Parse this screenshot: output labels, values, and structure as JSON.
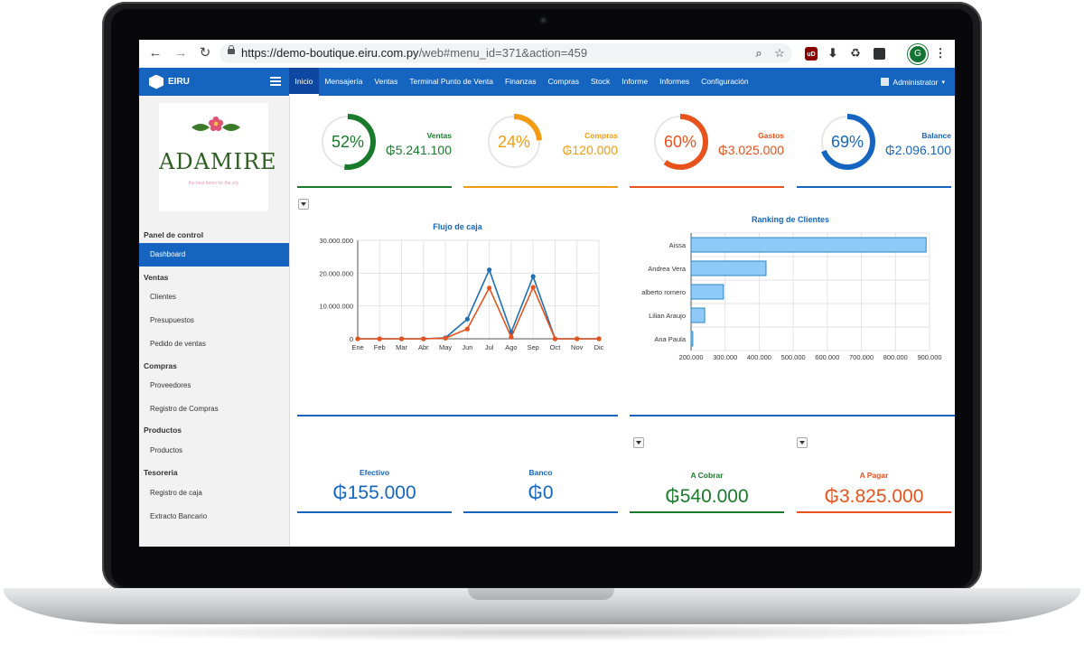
{
  "browser": {
    "url_host": "https://demo-boutique.eiru.com.py",
    "url_path": "/web#menu_id=371&action=459",
    "profile_initial": "G",
    "ublock_label": "uD"
  },
  "app": {
    "brand": "EIRU",
    "menu": [
      "Inicio",
      "Mensajería",
      "Ventas",
      "Terminal Punto de Venta",
      "Finanzas",
      "Compras",
      "Stock",
      "Informe",
      "Informes",
      "Configuración"
    ],
    "user": "Administrator"
  },
  "logo": {
    "name": "ADAMIRE",
    "tagline": "the best items for the city"
  },
  "sidebar": {
    "sections": [
      {
        "title": "Panel de control",
        "items": [
          "Dashboard"
        ]
      },
      {
        "title": "Ventas",
        "items": [
          "Clientes",
          "Presupuestos",
          "Pedido de ventas"
        ]
      },
      {
        "title": "Compras",
        "items": [
          "Proveedores",
          "Registro de Compras"
        ]
      },
      {
        "title": "Productos",
        "items": [
          "Productos"
        ]
      },
      {
        "title": "Tesoreria",
        "items": [
          "Registro de caja",
          "Extracto Bancario"
        ]
      }
    ]
  },
  "kpis": [
    {
      "label": "Ventas",
      "percent": "52%",
      "fraction": 0.52,
      "amount": "₲5.241.100",
      "color": "#1a7a2c"
    },
    {
      "label": "Compras",
      "percent": "24%",
      "fraction": 0.24,
      "amount": "₲120.000",
      "color": "#f39c12"
    },
    {
      "label": "Gastos",
      "percent": "60%",
      "fraction": 0.6,
      "amount": "₲3.025.000",
      "color": "#e8521c"
    },
    {
      "label": "Balance",
      "percent": "69%",
      "fraction": 0.69,
      "amount": "₲2.096.100",
      "color": "#1565c0"
    }
  ],
  "totals": [
    {
      "label": "Efectivo",
      "value": "₲155.000",
      "color": "#1565c0"
    },
    {
      "label": "Banco",
      "value": "₲0",
      "color": "#1565c0"
    },
    {
      "label": "A Cobrar",
      "value": "₲540.000",
      "color": "#1a7a2c"
    },
    {
      "label": "A Pagar",
      "value": "₲3.825.000",
      "color": "#e8521c"
    }
  ],
  "chart_data": [
    {
      "type": "line",
      "title": "Flujo de caja",
      "categories": [
        "Ene",
        "Feb",
        "Mar",
        "Abr",
        "May",
        "Jun",
        "Jul",
        "Ago",
        "Sep",
        "Oct",
        "Nov",
        "Dic"
      ],
      "y_ticks": [
        "0",
        "10.000.000",
        "20.000.000",
        "30.000.000"
      ],
      "ylim": [
        0,
        30000000
      ],
      "grid": true,
      "series": [
        {
          "color": "#1f6fb2",
          "values": [
            0,
            0,
            0,
            0,
            300000,
            6000000,
            21000000,
            2000000,
            19000000,
            0,
            0,
            0
          ]
        },
        {
          "color": "#e8521c",
          "values": [
            0,
            0,
            0,
            0,
            200000,
            3000000,
            15500000,
            500000,
            15700000,
            0,
            0,
            0
          ]
        }
      ]
    },
    {
      "type": "bar",
      "orientation": "horizontal",
      "title": "Ranking de Clientes",
      "categories": [
        "Aissa",
        "Andrea Vera",
        "alberto romero",
        "Lilian Araujo",
        "Ana Paula"
      ],
      "values": [
        890000,
        420000,
        295000,
        240000,
        205000
      ],
      "x_ticks": [
        "200.000",
        "300.000",
        "400.000",
        "500.000",
        "600.000",
        "700.000",
        "800.000",
        "900.000"
      ],
      "xlim": [
        200000,
        900000
      ],
      "grid": true,
      "color": "#90caf9"
    }
  ]
}
